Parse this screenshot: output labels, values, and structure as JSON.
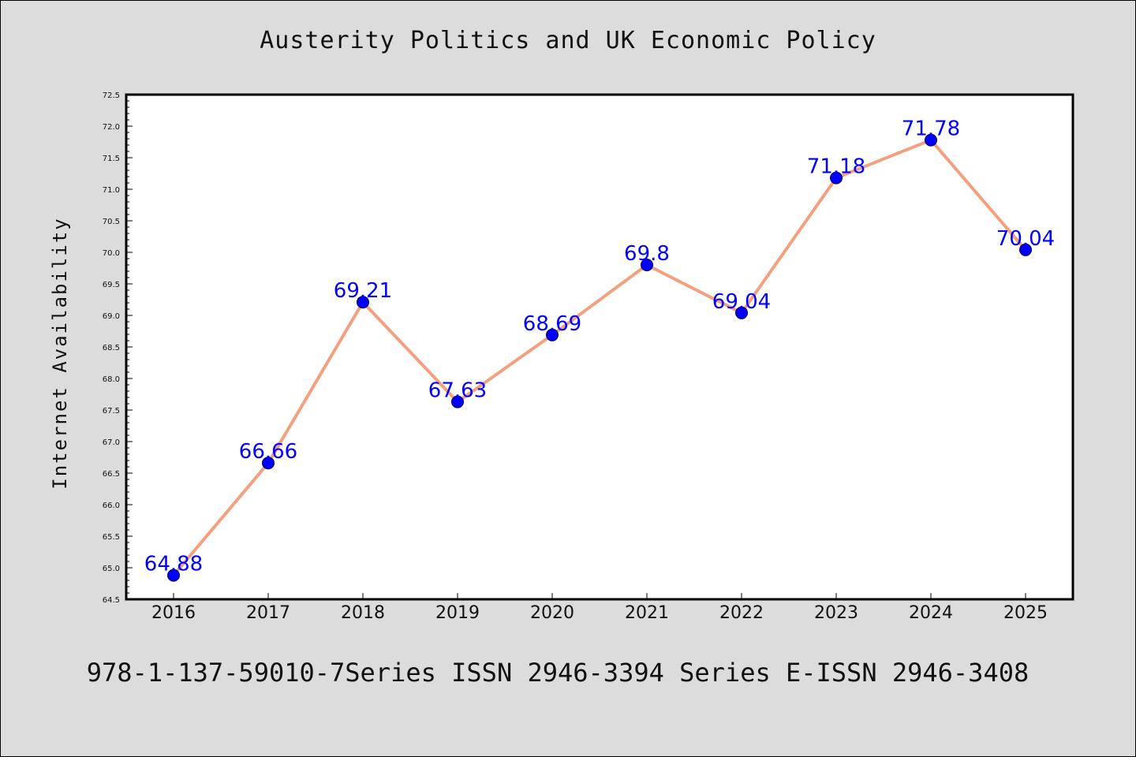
{
  "header": {
    "title": "Austerity Politics and UK Economic Policy"
  },
  "footer": {
    "text": "978-1-137-59010-7Series ISSN 2946-3394 Series E-ISSN 2946-3408"
  },
  "colors": {
    "background": "#dcdcdc",
    "plot_background": "#ffffff",
    "line": "#f4a07f",
    "marker": "#0000ff",
    "data_label": "#0000ff"
  },
  "chart_data": {
    "type": "line",
    "title": "Austerity Politics and UK Economic Policy",
    "xlabel": "",
    "ylabel": "Internet Availability",
    "categories": [
      "2016",
      "2017",
      "2018",
      "2019",
      "2020",
      "2021",
      "2022",
      "2023",
      "2024",
      "2025"
    ],
    "series": [
      {
        "values": [
          64.88,
          66.66,
          69.21,
          67.63,
          68.69,
          69.8,
          69.04,
          71.18,
          71.78,
          70.04
        ],
        "labels": [
          "64.88",
          "66.66",
          "69.21",
          "67.63",
          "68.69",
          "69.8",
          "69.04",
          "71.18",
          "71.78",
          "70.04"
        ]
      }
    ],
    "ylim": [
      64.5,
      72.5
    ],
    "yticks": [
      "64.5",
      "65.0",
      "65.5",
      "66.0",
      "66.5",
      "67.0",
      "67.5",
      "68.0",
      "68.5",
      "69.0",
      "69.5",
      "70.0",
      "70.5",
      "71.0",
      "71.5",
      "72.0",
      "72.5"
    ],
    "grid": false,
    "legend": "none"
  }
}
